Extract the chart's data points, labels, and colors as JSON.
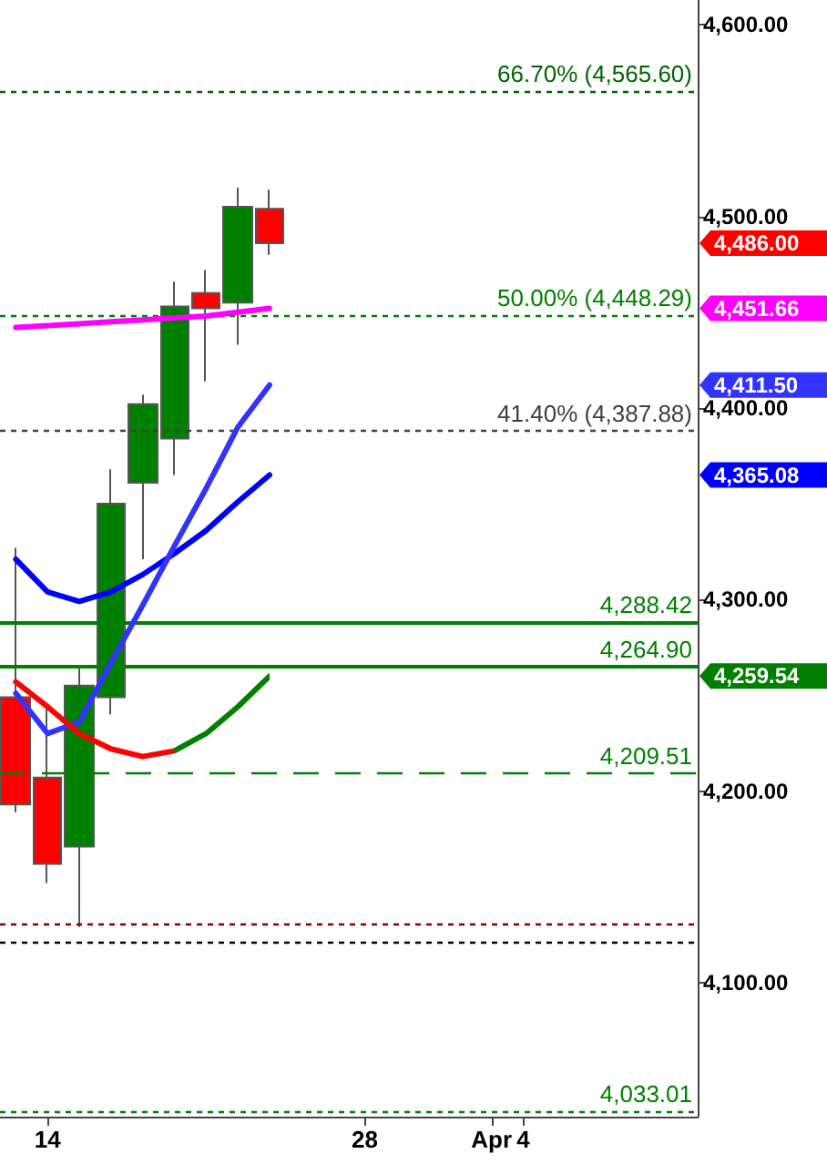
{
  "chart_data": {
    "type": "candlestick",
    "categories": [
      null,
      "14",
      null,
      null,
      null,
      null,
      null,
      null,
      null,
      null,
      null,
      "28",
      null,
      null,
      null,
      "Apr",
      "4",
      null,
      null,
      null,
      null,
      null
    ],
    "ylim": [
      4030,
      4613
    ],
    "yticks": [
      {
        "value": 4100,
        "label": "4,100.00"
      },
      {
        "value": 4200,
        "label": "4,200.00"
      },
      {
        "value": 4300,
        "label": "4,300.00"
      },
      {
        "value": 4400,
        "label": "4,400.00"
      },
      {
        "value": 4500,
        "label": "4,500.00"
      },
      {
        "value": 4600,
        "label": "4,600.00"
      }
    ],
    "grid": false,
    "marker": "none",
    "annotations": [
      "4,486.00",
      "4,451.66",
      "4,365.08",
      "4,411.50",
      "4,259.54"
    ],
    "series": [
      {
        "colors": [
          "#ff0000",
          "#ff0000",
          "#008000",
          "#008000",
          "#008000",
          "#008000",
          "#ff0000",
          "#008000",
          "#ff0000",
          null,
          null,
          null,
          null,
          null,
          null,
          null,
          null,
          null,
          null,
          null,
          null,
          null
        ],
        "ohlc": [
          [
            4249,
            4327,
            4189,
            4193
          ],
          [
            4207,
            4245,
            4152,
            4162
          ],
          [
            4171,
            4264,
            4129,
            4255
          ],
          [
            4249,
            4368,
            4240,
            4350
          ],
          [
            4361,
            4407,
            4321,
            4402
          ],
          [
            4384,
            4466,
            4365,
            4453
          ],
          [
            4460,
            4472,
            4414,
            4452
          ],
          [
            4455,
            4515,
            4433,
            4505
          ],
          [
            4504,
            4514,
            4480,
            4486
          ],
          null,
          null,
          null,
          null,
          null,
          null,
          null,
          null,
          null,
          null,
          null,
          null,
          null
        ]
      },
      {
        "type": "line",
        "color": "#ff00ff",
        "values": [
          4442,
          4443,
          4444,
          4445,
          4446,
          4447,
          4448,
          4450,
          4452,
          null,
          null,
          null,
          null,
          null,
          null,
          null,
          null,
          null,
          null,
          null,
          null,
          null
        ]
      },
      {
        "type": "line",
        "color": "#0000ff",
        "values": [
          4321,
          4304,
          4299,
          4304,
          4313,
          4324,
          4336,
          4351,
          4365,
          null,
          null,
          null,
          null,
          null,
          null,
          null,
          null,
          null,
          null,
          null,
          null,
          null
        ]
      },
      {
        "type": "line",
        "color": "#3333ff",
        "values": [
          4251,
          4230,
          4236,
          4267,
          4297,
          4328,
          4358,
          4390,
          4412,
          null,
          null,
          null,
          null,
          null,
          null,
          null,
          null,
          null,
          null,
          null,
          null,
          null
        ]
      },
      {
        "type": "line",
        "colors": [
          "#ff0000",
          "#ff0000",
          "#ff0000",
          "#ff0000",
          "#ff0000",
          "#ff0000",
          "#008000",
          "#008000",
          "#008000",
          null,
          null,
          null,
          null,
          null,
          null,
          null,
          null,
          null,
          null,
          null,
          null,
          null
        ],
        "values": [
          4257,
          4244,
          4230,
          4222,
          4218,
          4221,
          4230,
          4244,
          4260,
          null,
          null,
          null,
          null,
          null,
          null,
          null,
          null,
          null,
          null,
          null,
          null,
          null
        ]
      }
    ],
    "ref_lines": [
      {
        "axis": "y",
        "value": 4565.6,
        "label": "66.70% (4,565.60)",
        "color": "#006400",
        "line_style": "dotted"
      },
      {
        "axis": "y",
        "value": 4448.29,
        "label": "50.00% (4,448.29)",
        "color": "#008000",
        "line_style": "dotted"
      },
      {
        "axis": "y",
        "value": 4387.88,
        "label": "41.40% (4,387.88)",
        "color": "#404040",
        "line_style": "dotted"
      },
      {
        "axis": "y",
        "value": 4288.42,
        "label": "4,288.42",
        "color": "#008000",
        "line_style": "solid"
      },
      {
        "axis": "y",
        "value": 4264.9,
        "label": "4,264.90",
        "color": "#008000",
        "line_style": "solid"
      },
      {
        "axis": "y",
        "value": 4209.51,
        "label": "4,209.51",
        "color": "#008000",
        "line_style": "dashed"
      },
      {
        "axis": "y",
        "value": 4131,
        "label": null,
        "color": "#800000",
        "line_style": "dotted"
      },
      {
        "axis": "y",
        "value": 4121,
        "label": null,
        "color": "#000000",
        "line_style": "dotted"
      },
      {
        "axis": "y",
        "value": 4033.01,
        "label": "4,033.01",
        "color": "#008000",
        "line_style": "dotted"
      }
    ]
  }
}
